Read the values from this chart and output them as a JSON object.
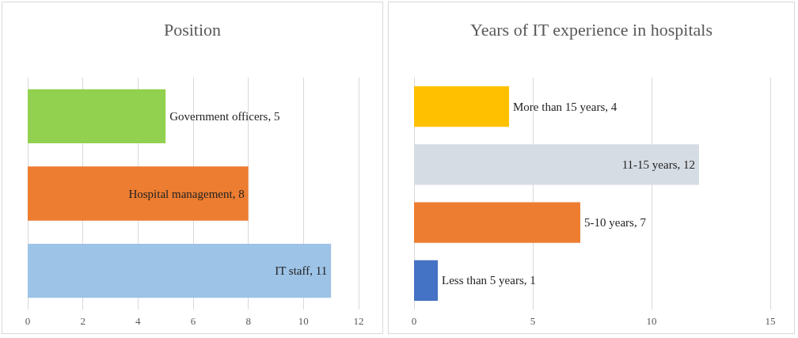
{
  "chart_data": [
    {
      "type": "bar",
      "title": "Position",
      "orientation": "horizontal",
      "categories": [
        null,
        null,
        null
      ],
      "values": [
        5,
        8,
        11
      ],
      "value_labels": [
        "Government officers, 5",
        "Hospital management, 8",
        "IT staff, 11"
      ],
      "colors": [
        "#92d050",
        "#ed7d31",
        "#9dc3e6"
      ],
      "xlim": [
        0,
        12
      ],
      "xticks": [
        0,
        2,
        4,
        6,
        8,
        10,
        12
      ],
      "grid": "x"
    },
    {
      "type": "bar",
      "title": "Years of IT experience in hospitals",
      "orientation": "horizontal",
      "categories": [
        null,
        null,
        null,
        null
      ],
      "values": [
        4,
        12,
        7,
        1
      ],
      "value_labels": [
        "More than 15 years, 4",
        "11-15 years, 12",
        "5-10 years, 7",
        "Less than 5 years, 1"
      ],
      "colors": [
        "#ffc000",
        "#d6dce4",
        "#ed7d31",
        "#4472c4"
      ],
      "xlim": [
        0,
        15
      ],
      "xticks": [
        0,
        5,
        10,
        15
      ],
      "grid": "x"
    }
  ]
}
